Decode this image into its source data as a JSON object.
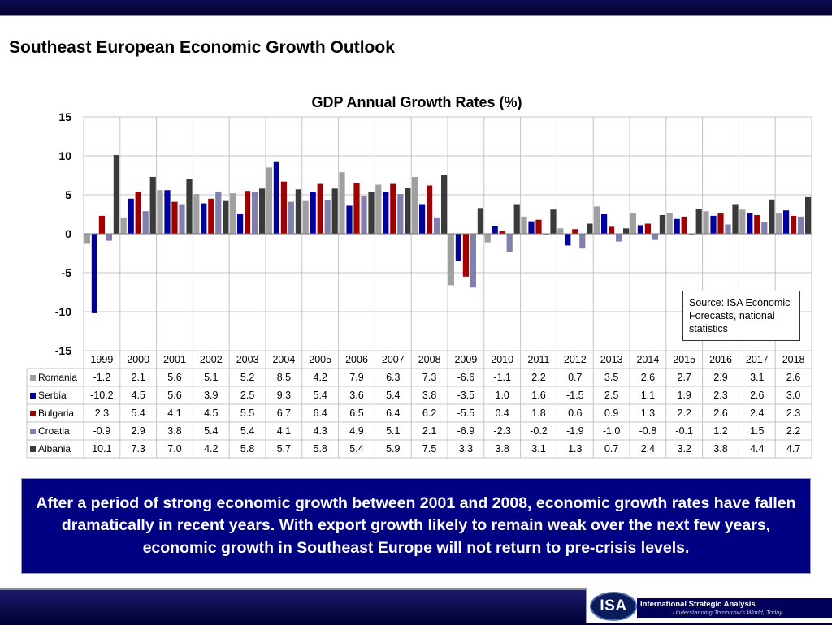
{
  "slide": {
    "title": "Southeast European Economic Growth Outlook",
    "source_note": "Source: ISA Economic Forecasts, national statistics",
    "summary": "After a period of strong economic growth between 2001 and 2008, economic growth rates have fallen dramatically in recent years.  With export growth likely to remain weak over the next few years, economic growth in Southeast Europe will not return to pre-crisis levels.",
    "logo": {
      "mark": "ISA",
      "name": "International Strategic Analysis",
      "tagline": "Understanding Tomorrow's World, Today"
    }
  },
  "chart_data": {
    "type": "bar",
    "title": "GDP Annual Growth Rates (%)",
    "xlabel": "",
    "ylabel": "",
    "ylim": [
      -15,
      15
    ],
    "yticks": [
      15,
      10,
      5,
      0,
      -5,
      -10,
      -15
    ],
    "grid": true,
    "legend": "data table below chart",
    "categories": [
      "1999",
      "2000",
      "2001",
      "2002",
      "2003",
      "2004",
      "2005",
      "2006",
      "2007",
      "2008",
      "2009",
      "2010",
      "2011",
      "2012",
      "2013",
      "2014",
      "2015",
      "2016",
      "2017",
      "2018"
    ],
    "series": [
      {
        "name": "Romania",
        "color": "#a0a0a0",
        "values": [
          -1.2,
          2.1,
          5.6,
          5.1,
          5.2,
          8.5,
          4.2,
          7.9,
          6.3,
          7.3,
          -6.6,
          -1.1,
          2.2,
          0.7,
          3.5,
          2.6,
          2.7,
          2.9,
          3.1,
          2.6
        ]
      },
      {
        "name": "Serbia",
        "color": "#00009a",
        "values": [
          -10.2,
          4.5,
          5.6,
          3.9,
          2.5,
          9.3,
          5.4,
          3.6,
          5.4,
          3.8,
          -3.5,
          1.0,
          1.6,
          -1.5,
          2.5,
          1.1,
          1.9,
          2.3,
          2.6,
          3.0
        ]
      },
      {
        "name": "Bulgaria",
        "color": "#a00000",
        "values": [
          2.3,
          5.4,
          4.1,
          4.5,
          5.5,
          6.7,
          6.4,
          6.5,
          6.4,
          6.2,
          -5.5,
          0.4,
          1.8,
          0.6,
          0.9,
          1.3,
          2.2,
          2.6,
          2.4,
          2.3
        ]
      },
      {
        "name": "Croatia",
        "color": "#8080ac",
        "values": [
          -0.9,
          2.9,
          3.8,
          5.4,
          5.4,
          4.1,
          4.3,
          4.9,
          5.1,
          2.1,
          -6.9,
          -2.3,
          -0.2,
          -1.9,
          -1.0,
          -0.8,
          -0.1,
          1.2,
          1.5,
          2.2
        ]
      },
      {
        "name": "Albania",
        "color": "#3a3a3a",
        "values": [
          10.1,
          7.3,
          7.0,
          4.2,
          5.8,
          5.7,
          5.8,
          5.4,
          5.9,
          7.5,
          3.3,
          3.8,
          3.1,
          1.3,
          0.7,
          2.4,
          3.2,
          3.8,
          4.4,
          4.7
        ]
      }
    ]
  }
}
